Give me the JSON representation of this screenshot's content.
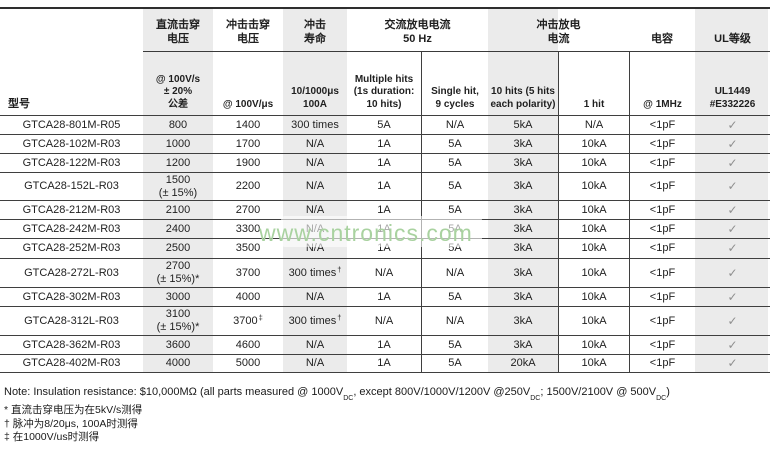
{
  "header": {
    "model": "型号",
    "groups": {
      "dc_breakdown": "直流击穿\n电压",
      "impulse_breakdown": "冲击击穿\n电压",
      "impulse_life": "冲击\n寿命",
      "ac_discharge": "交流放电电流\n50 Hz",
      "impulse_discharge": "冲击放电\n电流",
      "capacitance": "电容",
      "ul_rating": "UL等级"
    },
    "subheaders": {
      "dc_breakdown": "@ 100V/s\n± 20%\n公差",
      "impulse_breakdown": "@ 100V/μs",
      "impulse_life": "10/1000μs\n100A",
      "multiple_hits": "Multiple hits\n(1s duration:\n10 hits)",
      "single_hit": "Single hit,\n9 cycles",
      "ten_hits": "10 hits (5 hits\neach polarity)",
      "one_hit": "1 hit",
      "capacitance": "@ 1MHz",
      "ul_rating": "UL1449\n#E332226"
    }
  },
  "rows": [
    {
      "model": "GTCA28-801M-R05",
      "cells": [
        "800",
        "1400",
        "300 times",
        "5A",
        "N/A",
        "5kA",
        "N/A",
        "<1pF",
        "✓"
      ]
    },
    {
      "model": "GTCA28-102M-R03",
      "cells": [
        "1000",
        "1700",
        "N/A",
        "1A",
        "5A",
        "3kA",
        "10kA",
        "<1pF",
        "✓"
      ]
    },
    {
      "model": "GTCA28-122M-R03",
      "cells": [
        "1200",
        "1900",
        "N/A",
        "1A",
        "5A",
        "3kA",
        "10kA",
        "<1pF",
        "✓"
      ]
    },
    {
      "model": "GTCA28-152L-R03",
      "cells": [
        "1500\n(± 15%)",
        "2200",
        "N/A",
        "1A",
        "5A",
        "3kA",
        "10kA",
        "<1pF",
        "✓"
      ]
    },
    {
      "model": "GTCA28-212M-R03",
      "cells": [
        "2100",
        "2700",
        "N/A",
        "1A",
        "5A",
        "3kA",
        "10kA",
        "<1pF",
        "✓"
      ]
    },
    {
      "model": "GTCA28-242M-R03",
      "cells": [
        "2400",
        "3300",
        "N/A",
        "1A",
        "5A",
        "3kA",
        "10kA",
        "<1pF",
        "✓"
      ]
    },
    {
      "model": "GTCA28-252M-R03",
      "cells": [
        "2500",
        "3500",
        "N/A",
        "1A",
        "5A",
        "3kA",
        "10kA",
        "<1pF",
        "✓"
      ]
    },
    {
      "model": "GTCA28-272L-R03",
      "cells": [
        "2700\n(± 15%)*",
        "3700",
        "300 times^†",
        "N/A",
        "N/A",
        "3kA",
        "10kA",
        "<1pF",
        "✓"
      ]
    },
    {
      "model": "GTCA28-302M-R03",
      "cells": [
        "3000",
        "4000",
        "N/A",
        "1A",
        "5A",
        "3kA",
        "10kA",
        "<1pF",
        "✓"
      ]
    },
    {
      "model": "GTCA28-312L-R03",
      "cells": [
        "3100\n(± 15%)*",
        "3700^‡",
        "300 times^†",
        "N/A",
        "N/A",
        "3kA",
        "10kA",
        "<1pF",
        "✓"
      ]
    },
    {
      "model": "GTCA28-362M-R03",
      "cells": [
        "3600",
        "4600",
        "N/A",
        "1A",
        "5A",
        "3kA",
        "10kA",
        "<1pF",
        "✓"
      ]
    },
    {
      "model": "GTCA28-402M-R03",
      "cells": [
        "4000",
        "5000",
        "N/A",
        "1A",
        "5A",
        "20kA",
        "10kA",
        "<1pF",
        "✓"
      ]
    }
  ],
  "note": {
    "parts": [
      {
        "t": "Note: Insulation resistance: $10,000MΩ (all parts measured @ 1000V"
      },
      {
        "sub": "DC"
      },
      {
        "t": ", except 800V/1000V/1200V @250V"
      },
      {
        "sub": "DC"
      },
      {
        "t": "; 1500V/2100V @ 500V"
      },
      {
        "sub": "DC"
      },
      {
        "t": ")"
      }
    ]
  },
  "footnotes": [
    "* 直流击穿电压为在5kV/s测得",
    "† 脉冲为8/20μs, 100A时测得",
    "‡ 在1000V/us时测得"
  ],
  "watermark": "www.cntronics.com",
  "colors": {
    "column_shade": "#ebebeb",
    "rule": "#3f3f3f",
    "check_gray": "#8f8f8f",
    "watermark_green": "#a9d2a0"
  }
}
